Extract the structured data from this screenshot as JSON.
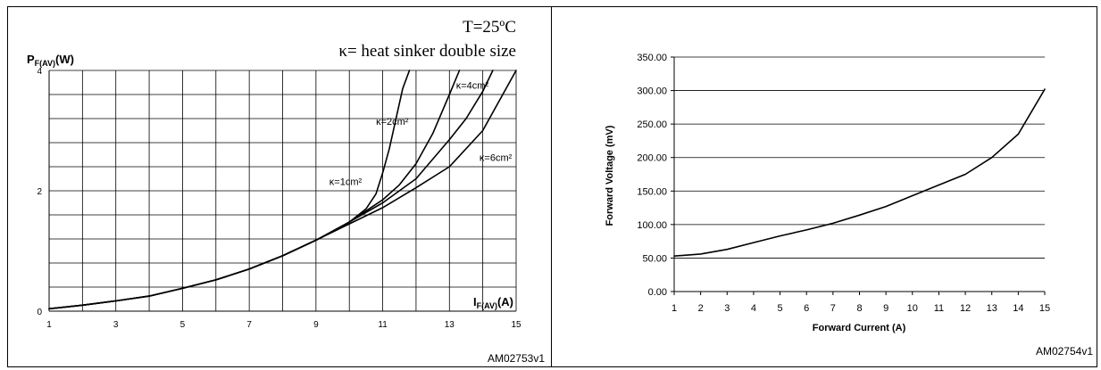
{
  "chart_data": [
    {
      "type": "line",
      "title": "",
      "annotation_temperature": "T=25ºC",
      "annotation_kappa": "κ= heat sinker double size",
      "ylabel": "P",
      "ylabel_sub": "F(AV)",
      "ylabel_unit": "(W)",
      "xlabel": "I",
      "xlabel_sub": "F(AV)",
      "xlabel_unit": "(A)",
      "xlim": [
        1,
        15
      ],
      "ylim": [
        0,
        4
      ],
      "x_ticks": [
        "1",
        "3",
        "5",
        "7",
        "9",
        "11",
        "13",
        "15"
      ],
      "y_ticks": [
        "0",
        "2",
        "4"
      ],
      "grid": true,
      "code": "AM02753v1",
      "series": [
        {
          "name": "κ=1cm²",
          "x": [
            1,
            2,
            3,
            4,
            5,
            6,
            7,
            8,
            9,
            10,
            10.5,
            10.8,
            11,
            11.2,
            11.4,
            11.6,
            11.8
          ],
          "y": [
            0.04,
            0.1,
            0.17,
            0.25,
            0.38,
            0.52,
            0.7,
            0.92,
            1.18,
            1.48,
            1.7,
            1.95,
            2.3,
            2.7,
            3.2,
            3.7,
            4.0
          ]
        },
        {
          "name": "κ=2cm²",
          "x": [
            1,
            2,
            3,
            4,
            5,
            6,
            7,
            8,
            9,
            10,
            11,
            11.5,
            12,
            12.5,
            13,
            13.3
          ],
          "y": [
            0.04,
            0.1,
            0.17,
            0.25,
            0.38,
            0.52,
            0.7,
            0.92,
            1.18,
            1.48,
            1.85,
            2.1,
            2.45,
            2.95,
            3.6,
            4.0
          ]
        },
        {
          "name": "κ=4cm²",
          "x": [
            1,
            2,
            3,
            4,
            5,
            6,
            7,
            8,
            9,
            10,
            11,
            12,
            13,
            13.5,
            14,
            14.3
          ],
          "y": [
            0.04,
            0.1,
            0.17,
            0.25,
            0.38,
            0.52,
            0.7,
            0.92,
            1.18,
            1.48,
            1.8,
            2.2,
            2.85,
            3.2,
            3.65,
            4.0
          ]
        },
        {
          "name": "κ=6cm²",
          "x": [
            1,
            2,
            3,
            4,
            5,
            6,
            7,
            8,
            9,
            10,
            11,
            12,
            13,
            14,
            15
          ],
          "y": [
            0.04,
            0.1,
            0.17,
            0.25,
            0.38,
            0.52,
            0.7,
            0.92,
            1.18,
            1.45,
            1.72,
            2.05,
            2.4,
            3.0,
            4.0
          ]
        }
      ]
    },
    {
      "type": "line",
      "title": "",
      "xlabel": "Forward Current (A)",
      "ylabel": "Forward Voltage (mV)",
      "xlim": [
        1,
        15
      ],
      "ylim": [
        0,
        350
      ],
      "x_ticks": [
        "1",
        "2",
        "3",
        "4",
        "5",
        "6",
        "7",
        "8",
        "9",
        "10",
        "11",
        "12",
        "13",
        "14",
        "15"
      ],
      "y_ticks": [
        "0.00",
        "50.00",
        "100.00",
        "150.00",
        "200.00",
        "250.00",
        "300.00",
        "350.00"
      ],
      "grid": true,
      "code": "AM02754v1",
      "series": [
        {
          "x": [
            1,
            2,
            3,
            4,
            5,
            6,
            7,
            8,
            9,
            10,
            11,
            12,
            13,
            14,
            15
          ],
          "y": [
            53,
            56,
            63,
            73,
            83,
            92,
            102,
            114,
            127,
            143,
            159,
            175,
            200,
            235,
            302
          ]
        }
      ]
    }
  ]
}
